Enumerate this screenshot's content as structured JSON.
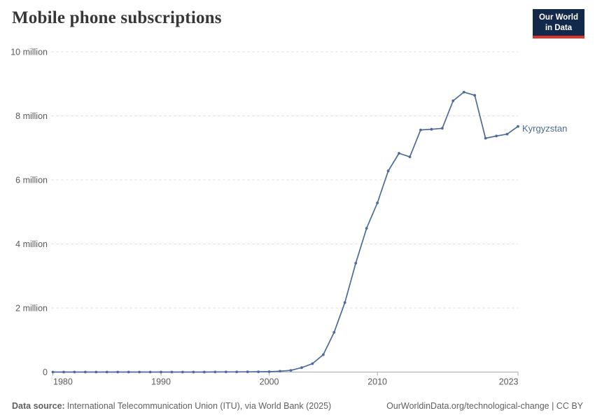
{
  "header": {
    "title": "Mobile phone subscriptions"
  },
  "logo": {
    "line1": "Our World",
    "line2": "in Data",
    "bg_color": "#12294B",
    "accent_color": "#D7352D"
  },
  "footer": {
    "source_label": "Data source:",
    "source_text": "International Telecommunication Union (ITU), via World Bank (2025)",
    "url_text": "OurWorldinData.org/technological-change | CC BY"
  },
  "chart_data": {
    "type": "line",
    "title": "Mobile phone subscriptions",
    "xlabel": "",
    "ylabel": "",
    "grid": true,
    "x_range": [
      1980,
      2023
    ],
    "y_range": [
      0,
      10000000
    ],
    "line_color": "#4C6A9C",
    "gridline_color": "#dcdcdc",
    "axis_color": "#a9a9a9",
    "tick_label_color": "#5b5b5b",
    "y_ticks": [
      {
        "value": 0,
        "label": "0"
      },
      {
        "value": 2000000,
        "label": "2 million"
      },
      {
        "value": 4000000,
        "label": "4 million"
      },
      {
        "value": 6000000,
        "label": "6 million"
      },
      {
        "value": 8000000,
        "label": "8 million"
      },
      {
        "value": 10000000,
        "label": "10 million"
      }
    ],
    "x_ticks": [
      {
        "year": 1980,
        "label": "1980",
        "align": "start"
      },
      {
        "year": 1990,
        "label": "1990",
        "align": "middle"
      },
      {
        "year": 2000,
        "label": "2000",
        "align": "middle"
      },
      {
        "year": 2010,
        "label": "2010",
        "align": "middle"
      },
      {
        "year": 2023,
        "label": "2023",
        "align": "end"
      }
    ],
    "series": [
      {
        "name": "Kyrgyzstan",
        "color": "#4C6A9C",
        "points": [
          {
            "year": 1980,
            "value": 0
          },
          {
            "year": 1981,
            "value": 0
          },
          {
            "year": 1982,
            "value": 0
          },
          {
            "year": 1983,
            "value": 0
          },
          {
            "year": 1984,
            "value": 0
          },
          {
            "year": 1985,
            "value": 0
          },
          {
            "year": 1986,
            "value": 0
          },
          {
            "year": 1987,
            "value": 0
          },
          {
            "year": 1988,
            "value": 0
          },
          {
            "year": 1989,
            "value": 0
          },
          {
            "year": 1990,
            "value": 0
          },
          {
            "year": 1991,
            "value": 0
          },
          {
            "year": 1992,
            "value": 0
          },
          {
            "year": 1993,
            "value": 0
          },
          {
            "year": 1994,
            "value": 1000
          },
          {
            "year": 1995,
            "value": 2000
          },
          {
            "year": 1996,
            "value": 4000
          },
          {
            "year": 1997,
            "value": 5000
          },
          {
            "year": 1998,
            "value": 7000
          },
          {
            "year": 1999,
            "value": 9000
          },
          {
            "year": 2000,
            "value": 10000
          },
          {
            "year": 2001,
            "value": 27000
          },
          {
            "year": 2002,
            "value": 53000
          },
          {
            "year": 2003,
            "value": 138000
          },
          {
            "year": 2004,
            "value": 263000
          },
          {
            "year": 2005,
            "value": 541000
          },
          {
            "year": 2006,
            "value": 1240000
          },
          {
            "year": 2007,
            "value": 2170000
          },
          {
            "year": 2008,
            "value": 3400000
          },
          {
            "year": 2009,
            "value": 4490000
          },
          {
            "year": 2010,
            "value": 5280000
          },
          {
            "year": 2011,
            "value": 6280000
          },
          {
            "year": 2012,
            "value": 6830000
          },
          {
            "year": 2013,
            "value": 6720000
          },
          {
            "year": 2014,
            "value": 7560000
          },
          {
            "year": 2015,
            "value": 7580000
          },
          {
            "year": 2016,
            "value": 7610000
          },
          {
            "year": 2017,
            "value": 8470000
          },
          {
            "year": 2018,
            "value": 8740000
          },
          {
            "year": 2019,
            "value": 8640000
          },
          {
            "year": 2020,
            "value": 7300000
          },
          {
            "year": 2021,
            "value": 7370000
          },
          {
            "year": 2022,
            "value": 7430000
          },
          {
            "year": 2023,
            "value": 7670000
          }
        ]
      }
    ]
  }
}
